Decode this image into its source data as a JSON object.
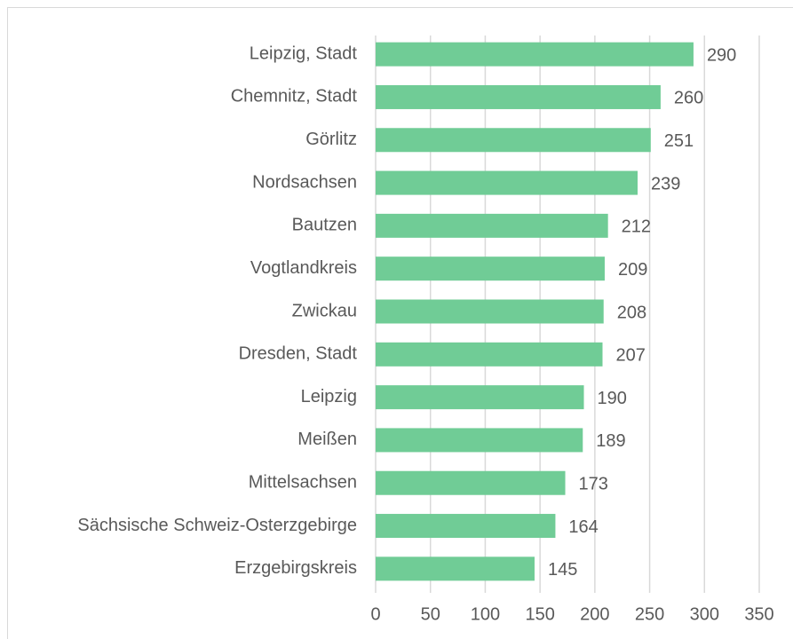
{
  "chart_data": {
    "type": "bar",
    "orientation": "horizontal",
    "categories": [
      "Leipzig, Stadt",
      "Chemnitz, Stadt",
      "Görlitz",
      "Nordsachsen",
      "Bautzen",
      "Vogtlandkreis",
      "Zwickau",
      "Dresden, Stadt",
      "Leipzig",
      "Meißen",
      "Mittelsachsen",
      "Sächsische Schweiz-Osterzgebirge",
      "Erzgebirgskreis"
    ],
    "values": [
      290,
      260,
      251,
      239,
      212,
      209,
      208,
      207,
      190,
      189,
      173,
      164,
      145
    ],
    "color": "#70cc96",
    "xlim": [
      0,
      350
    ],
    "xticks": [
      0,
      50,
      100,
      150,
      200,
      250,
      300,
      350
    ],
    "grid": true
  }
}
